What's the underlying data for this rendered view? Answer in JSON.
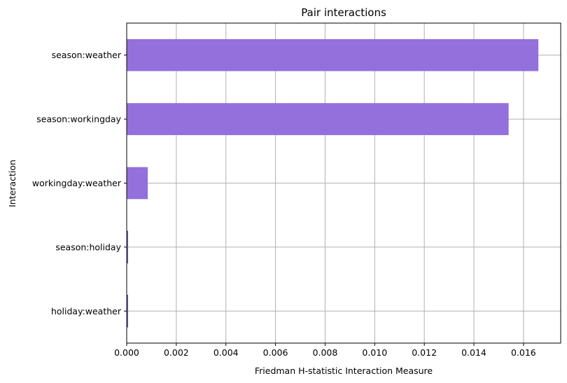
{
  "chart_data": {
    "type": "bar",
    "orientation": "horizontal",
    "title": "Pair interactions",
    "xlabel": "Friedman H-statistic Interaction Measure",
    "ylabel": "Interaction",
    "categories": [
      "season:weather",
      "season:workingday",
      "workingday:weather",
      "season:holiday",
      "holiday:weather"
    ],
    "values": [
      0.0166,
      0.0154,
      0.00085,
      4e-05,
      3e-05
    ],
    "xlim": [
      0,
      0.0175
    ],
    "xticks": [
      0.0,
      0.002,
      0.004,
      0.006,
      0.008,
      0.01,
      0.012,
      0.014,
      0.016
    ],
    "xtick_labels": [
      "0.000",
      "0.002",
      "0.004",
      "0.006",
      "0.008",
      "0.010",
      "0.012",
      "0.014",
      "0.016"
    ],
    "grid": true,
    "bar_color": "#9370db",
    "bar_edge_color": "#483d8b"
  }
}
